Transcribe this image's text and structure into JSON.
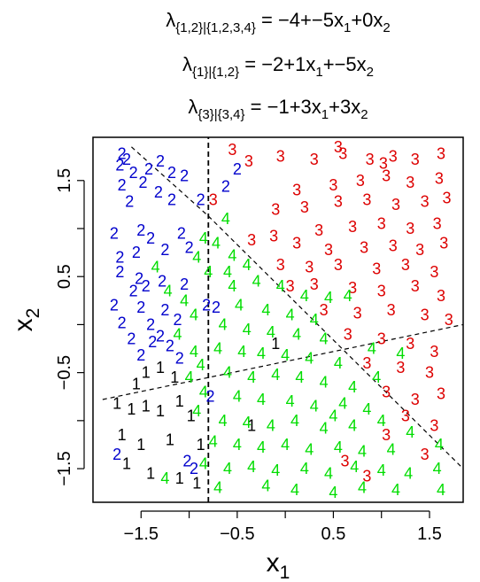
{
  "chart_data": {
    "type": "scatter",
    "title_lines": [
      {
        "lam": "λ",
        "sub": "{1,2}|{1,2,3,4}",
        "rest": " = −4+−5x",
        "s1": "1",
        "mid": "+0x",
        "s2": "2",
        "tail": ""
      },
      {
        "lam": "λ",
        "sub": "{1}|{1,2}",
        "rest": " = −2+1x",
        "s1": "1",
        "mid": "+−5x",
        "s2": "2",
        "tail": ""
      },
      {
        "lam": "λ",
        "sub": "{3}|{3,4}",
        "rest": " = −1+3x",
        "s1": "1",
        "mid": "+3x",
        "s2": "2",
        "tail": ""
      }
    ],
    "xlabel": {
      "base": "x",
      "sub": "1"
    },
    "ylabel": {
      "base": "x",
      "sub": "2"
    },
    "xlim": [
      -2.0,
      1.85
    ],
    "ylim": [
      -1.85,
      1.95
    ],
    "xticks": [
      -1.5,
      -1.0,
      -0.5,
      0.0,
      0.5,
      1.0,
      1.5
    ],
    "xtick_labels": [
      "−1.5",
      "",
      "−0.5",
      "",
      "0.5",
      "",
      "1.5"
    ],
    "yticks": [
      -1.5,
      -1.0,
      -0.5,
      0.0,
      0.5,
      1.0,
      1.5
    ],
    "ytick_labels": [
      "−1.5",
      "",
      "−0.5",
      "",
      "0.5",
      "",
      "1.5"
    ],
    "series_colors": {
      "1": "#000000",
      "2": "#0000cc",
      "3": "#dd0000",
      "4": "#00dd00"
    },
    "boundaries": [
      {
        "style": "dashed",
        "points": [
          [
            -0.8,
            -1.85
          ],
          [
            -0.8,
            1.95
          ]
        ]
      },
      {
        "style": "dashed",
        "points": [
          [
            -1.9,
            -0.78
          ],
          [
            1.85,
            0.0
          ]
        ]
      },
      {
        "style": "dashed",
        "points": [
          [
            -1.6,
            1.85
          ],
          [
            -0.8,
            1.13
          ]
        ]
      },
      {
        "style": "dashed",
        "points": [
          [
            -0.8,
            1.13
          ],
          [
            1.85,
            -1.5
          ]
        ]
      }
    ],
    "points": [
      {
        "x": -1.7,
        "y": 1.78,
        "c": "2"
      },
      {
        "x": -1.65,
        "y": 1.72,
        "c": "2"
      },
      {
        "x": -1.72,
        "y": 1.66,
        "c": "2"
      },
      {
        "x": -1.42,
        "y": 1.62,
        "c": "2"
      },
      {
        "x": -1.58,
        "y": 1.58,
        "c": "2"
      },
      {
        "x": -1.3,
        "y": 1.7,
        "c": "2"
      },
      {
        "x": -1.18,
        "y": 1.58,
        "c": "2"
      },
      {
        "x": -1.7,
        "y": 1.45,
        "c": "2"
      },
      {
        "x": -1.48,
        "y": 1.48,
        "c": "2"
      },
      {
        "x": -1.32,
        "y": 1.38,
        "c": "2"
      },
      {
        "x": -1.05,
        "y": 1.55,
        "c": "2"
      },
      {
        "x": -1.62,
        "y": 1.28,
        "c": "2"
      },
      {
        "x": -1.18,
        "y": 1.3,
        "c": "2"
      },
      {
        "x": -0.88,
        "y": 1.3,
        "c": "2"
      },
      {
        "x": -0.62,
        "y": 1.44,
        "c": "2"
      },
      {
        "x": -0.5,
        "y": 1.62,
        "c": "2"
      },
      {
        "x": -1.78,
        "y": 0.95,
        "c": "2"
      },
      {
        "x": -1.5,
        "y": 0.98,
        "c": "2"
      },
      {
        "x": -1.4,
        "y": 0.9,
        "c": "2"
      },
      {
        "x": -1.08,
        "y": 0.95,
        "c": "2"
      },
      {
        "x": -1.72,
        "y": 0.7,
        "c": "2"
      },
      {
        "x": -1.55,
        "y": 0.75,
        "c": "2"
      },
      {
        "x": -1.25,
        "y": 0.78,
        "c": "2"
      },
      {
        "x": -1.0,
        "y": 0.8,
        "c": "2"
      },
      {
        "x": -1.72,
        "y": 0.55,
        "c": "2"
      },
      {
        "x": -1.52,
        "y": 0.48,
        "c": "2"
      },
      {
        "x": -1.45,
        "y": 0.4,
        "c": "2"
      },
      {
        "x": -1.58,
        "y": 0.35,
        "c": "2"
      },
      {
        "x": -1.28,
        "y": 0.45,
        "c": "2"
      },
      {
        "x": -1.05,
        "y": 0.42,
        "c": "2"
      },
      {
        "x": -1.78,
        "y": 0.2,
        "c": "2"
      },
      {
        "x": -1.5,
        "y": 0.18,
        "c": "2"
      },
      {
        "x": -1.25,
        "y": 0.15,
        "c": "2"
      },
      {
        "x": -1.7,
        "y": 0.02,
        "c": "2"
      },
      {
        "x": -1.4,
        "y": 0.0,
        "c": "2"
      },
      {
        "x": -1.12,
        "y": 0.05,
        "c": "2"
      },
      {
        "x": -1.6,
        "y": -0.15,
        "c": "2"
      },
      {
        "x": -1.38,
        "y": -0.18,
        "c": "2"
      },
      {
        "x": -1.3,
        "y": -0.12,
        "c": "2"
      },
      {
        "x": -1.2,
        "y": -0.22,
        "c": "2"
      },
      {
        "x": -1.5,
        "y": -0.32,
        "c": "2"
      },
      {
        "x": -0.82,
        "y": 0.2,
        "c": "2"
      },
      {
        "x": -0.72,
        "y": 0.18,
        "c": "2"
      },
      {
        "x": -0.78,
        "y": -0.75,
        "c": "2"
      },
      {
        "x": -1.75,
        "y": -1.35,
        "c": "2"
      },
      {
        "x": -1.02,
        "y": -1.42,
        "c": "2"
      },
      {
        "x": -0.95,
        "y": -1.5,
        "c": "2"
      },
      {
        "x": -1.1,
        "y": -0.35,
        "c": "2"
      },
      {
        "x": -1.45,
        "y": -0.5,
        "c": "1"
      },
      {
        "x": -1.3,
        "y": -0.45,
        "c": "1"
      },
      {
        "x": -1.55,
        "y": -0.62,
        "c": "1"
      },
      {
        "x": -1.15,
        "y": -0.55,
        "c": "1"
      },
      {
        "x": -1.75,
        "y": -0.82,
        "c": "1"
      },
      {
        "x": -1.6,
        "y": -0.88,
        "c": "1"
      },
      {
        "x": -1.45,
        "y": -0.85,
        "c": "1"
      },
      {
        "x": -1.3,
        "y": -0.9,
        "c": "1"
      },
      {
        "x": -1.1,
        "y": -0.8,
        "c": "1"
      },
      {
        "x": -0.98,
        "y": -0.95,
        "c": "1"
      },
      {
        "x": -1.7,
        "y": -1.15,
        "c": "1"
      },
      {
        "x": -1.5,
        "y": -1.25,
        "c": "1"
      },
      {
        "x": -1.2,
        "y": -1.2,
        "c": "1"
      },
      {
        "x": -1.65,
        "y": -1.45,
        "c": "1"
      },
      {
        "x": -1.4,
        "y": -1.55,
        "c": "1"
      },
      {
        "x": -1.1,
        "y": -1.6,
        "c": "1"
      },
      {
        "x": -0.92,
        "y": -1.65,
        "c": "1"
      },
      {
        "x": -0.88,
        "y": -1.25,
        "c": "1"
      },
      {
        "x": -0.35,
        "y": -1.05,
        "c": "1"
      },
      {
        "x": -0.1,
        "y": -0.2,
        "c": "1"
      },
      {
        "x": -0.75,
        "y": 1.3,
        "c": "3"
      },
      {
        "x": -0.55,
        "y": 1.82,
        "c": "3"
      },
      {
        "x": -0.38,
        "y": 1.7,
        "c": "3"
      },
      {
        "x": -0.05,
        "y": 1.75,
        "c": "3"
      },
      {
        "x": 0.3,
        "y": 1.72,
        "c": "3"
      },
      {
        "x": 0.55,
        "y": 1.85,
        "c": "3"
      },
      {
        "x": 0.6,
        "y": 1.78,
        "c": "3"
      },
      {
        "x": 0.88,
        "y": 1.72,
        "c": "3"
      },
      {
        "x": 1.02,
        "y": 1.68,
        "c": "3"
      },
      {
        "x": 1.12,
        "y": 1.75,
        "c": "3"
      },
      {
        "x": 1.35,
        "y": 1.72,
        "c": "3"
      },
      {
        "x": 1.62,
        "y": 1.78,
        "c": "3"
      },
      {
        "x": 0.12,
        "y": 1.4,
        "c": "3"
      },
      {
        "x": 0.5,
        "y": 1.45,
        "c": "3"
      },
      {
        "x": 0.78,
        "y": 1.5,
        "c": "3"
      },
      {
        "x": 1.05,
        "y": 1.55,
        "c": "3"
      },
      {
        "x": 1.3,
        "y": 1.48,
        "c": "3"
      },
      {
        "x": 1.6,
        "y": 1.52,
        "c": "3"
      },
      {
        "x": -0.1,
        "y": 1.2,
        "c": "3"
      },
      {
        "x": 0.2,
        "y": 1.22,
        "c": "3"
      },
      {
        "x": 0.55,
        "y": 1.28,
        "c": "3"
      },
      {
        "x": 0.85,
        "y": 1.3,
        "c": "3"
      },
      {
        "x": 1.15,
        "y": 1.25,
        "c": "3"
      },
      {
        "x": 1.45,
        "y": 1.28,
        "c": "3"
      },
      {
        "x": 1.68,
        "y": 1.32,
        "c": "3"
      },
      {
        "x": 0.35,
        "y": 0.98,
        "c": "3"
      },
      {
        "x": 0.7,
        "y": 1.02,
        "c": "3"
      },
      {
        "x": 1.0,
        "y": 1.05,
        "c": "3"
      },
      {
        "x": 1.3,
        "y": 1.0,
        "c": "3"
      },
      {
        "x": 1.58,
        "y": 1.05,
        "c": "3"
      },
      {
        "x": -0.35,
        "y": 0.88,
        "c": "3"
      },
      {
        "x": -0.12,
        "y": 0.92,
        "c": "3"
      },
      {
        "x": 0.12,
        "y": 0.85,
        "c": "3"
      },
      {
        "x": 0.45,
        "y": 0.78,
        "c": "3"
      },
      {
        "x": 0.82,
        "y": 0.8,
        "c": "3"
      },
      {
        "x": 1.12,
        "y": 0.82,
        "c": "3"
      },
      {
        "x": 1.4,
        "y": 0.78,
        "c": "3"
      },
      {
        "x": 1.65,
        "y": 0.85,
        "c": "3"
      },
      {
        "x": -0.05,
        "y": 0.62,
        "c": "3"
      },
      {
        "x": 0.25,
        "y": 0.6,
        "c": "3"
      },
      {
        "x": 0.55,
        "y": 0.62,
        "c": "3"
      },
      {
        "x": 0.95,
        "y": 0.58,
        "c": "3"
      },
      {
        "x": 1.25,
        "y": 0.62,
        "c": "3"
      },
      {
        "x": 1.55,
        "y": 0.55,
        "c": "3"
      },
      {
        "x": 0.05,
        "y": 0.4,
        "c": "3"
      },
      {
        "x": 0.3,
        "y": 0.42,
        "c": "3"
      },
      {
        "x": 0.7,
        "y": 0.38,
        "c": "3"
      },
      {
        "x": 1.0,
        "y": 0.35,
        "c": "3"
      },
      {
        "x": 1.35,
        "y": 0.4,
        "c": "3"
      },
      {
        "x": 1.62,
        "y": 0.3,
        "c": "3"
      },
      {
        "x": 0.4,
        "y": 0.15,
        "c": "3"
      },
      {
        "x": 0.75,
        "y": 0.12,
        "c": "3"
      },
      {
        "x": 1.1,
        "y": 0.15,
        "c": "3"
      },
      {
        "x": 1.45,
        "y": 0.1,
        "c": "3"
      },
      {
        "x": 1.7,
        "y": 0.05,
        "c": "3"
      },
      {
        "x": 0.65,
        "y": -0.1,
        "c": "3"
      },
      {
        "x": 1.0,
        "y": -0.15,
        "c": "3"
      },
      {
        "x": 1.3,
        "y": -0.2,
        "c": "3"
      },
      {
        "x": 1.55,
        "y": -0.28,
        "c": "3"
      },
      {
        "x": 0.85,
        "y": -0.4,
        "c": "3"
      },
      {
        "x": 1.2,
        "y": -0.45,
        "c": "3"
      },
      {
        "x": 1.5,
        "y": -0.5,
        "c": "3"
      },
      {
        "x": 1.05,
        "y": -0.7,
        "c": "3"
      },
      {
        "x": 1.35,
        "y": -0.78,
        "c": "3"
      },
      {
        "x": 1.62,
        "y": -0.72,
        "c": "3"
      },
      {
        "x": 1.25,
        "y": -0.95,
        "c": "3"
      },
      {
        "x": 1.55,
        "y": -1.05,
        "c": "3"
      },
      {
        "x": 1.05,
        "y": -1.15,
        "c": "3"
      },
      {
        "x": 1.45,
        "y": -1.35,
        "c": "3"
      },
      {
        "x": 0.62,
        "y": -1.42,
        "c": "3"
      },
      {
        "x": 0.85,
        "y": -1.58,
        "c": "3"
      },
      {
        "x": -0.62,
        "y": 1.1,
        "c": "4"
      },
      {
        "x": -0.85,
        "y": 0.9,
        "c": "4"
      },
      {
        "x": -0.72,
        "y": 0.85,
        "c": "4"
      },
      {
        "x": -0.92,
        "y": 0.7,
        "c": "4"
      },
      {
        "x": -0.55,
        "y": 0.72,
        "c": "4"
      },
      {
        "x": -0.8,
        "y": 0.55,
        "c": "4"
      },
      {
        "x": -0.6,
        "y": 0.55,
        "c": "4"
      },
      {
        "x": -0.4,
        "y": 0.62,
        "c": "4"
      },
      {
        "x": -1.35,
        "y": 0.6,
        "c": "4"
      },
      {
        "x": -1.22,
        "y": 0.35,
        "c": "4"
      },
      {
        "x": -1.05,
        "y": 0.25,
        "c": "4"
      },
      {
        "x": -0.95,
        "y": 0.1,
        "c": "4"
      },
      {
        "x": -1.12,
        "y": -0.1,
        "c": "4"
      },
      {
        "x": -0.95,
        "y": -0.28,
        "c": "4"
      },
      {
        "x": -0.88,
        "y": -0.42,
        "c": "4"
      },
      {
        "x": -1.0,
        "y": -0.55,
        "c": "4"
      },
      {
        "x": -0.85,
        "y": -0.7,
        "c": "4"
      },
      {
        "x": -0.92,
        "y": -0.9,
        "c": "4"
      },
      {
        "x": -0.55,
        "y": 0.4,
        "c": "4"
      },
      {
        "x": -0.3,
        "y": 0.45,
        "c": "4"
      },
      {
        "x": -0.05,
        "y": 0.4,
        "c": "4"
      },
      {
        "x": 0.2,
        "y": 0.3,
        "c": "4"
      },
      {
        "x": 0.45,
        "y": 0.28,
        "c": "4"
      },
      {
        "x": 0.65,
        "y": 0.3,
        "c": "4"
      },
      {
        "x": -0.48,
        "y": 0.2,
        "c": "4"
      },
      {
        "x": -0.2,
        "y": 0.15,
        "c": "4"
      },
      {
        "x": 0.05,
        "y": 0.1,
        "c": "4"
      },
      {
        "x": 0.3,
        "y": 0.05,
        "c": "4"
      },
      {
        "x": -0.65,
        "y": 0.0,
        "c": "4"
      },
      {
        "x": -0.4,
        "y": -0.05,
        "c": "4"
      },
      {
        "x": -0.15,
        "y": -0.08,
        "c": "4"
      },
      {
        "x": 0.12,
        "y": -0.1,
        "c": "4"
      },
      {
        "x": 0.4,
        "y": -0.15,
        "c": "4"
      },
      {
        "x": -0.7,
        "y": -0.25,
        "c": "4"
      },
      {
        "x": -0.45,
        "y": -0.28,
        "c": "4"
      },
      {
        "x": -0.25,
        "y": -0.3,
        "c": "4"
      },
      {
        "x": 0.0,
        "y": -0.32,
        "c": "4"
      },
      {
        "x": 0.25,
        "y": -0.35,
        "c": "4"
      },
      {
        "x": 0.55,
        "y": -0.4,
        "c": "4"
      },
      {
        "x": -0.6,
        "y": -0.5,
        "c": "4"
      },
      {
        "x": -0.35,
        "y": -0.55,
        "c": "4"
      },
      {
        "x": -0.1,
        "y": -0.52,
        "c": "4"
      },
      {
        "x": 0.15,
        "y": -0.55,
        "c": "4"
      },
      {
        "x": 0.4,
        "y": -0.6,
        "c": "4"
      },
      {
        "x": 0.7,
        "y": -0.65,
        "c": "4"
      },
      {
        "x": 0.95,
        "y": -0.55,
        "c": "4"
      },
      {
        "x": -0.5,
        "y": -0.75,
        "c": "4"
      },
      {
        "x": -0.25,
        "y": -0.78,
        "c": "4"
      },
      {
        "x": 0.05,
        "y": -0.8,
        "c": "4"
      },
      {
        "x": 0.3,
        "y": -0.85,
        "c": "4"
      },
      {
        "x": 0.6,
        "y": -0.82,
        "c": "4"
      },
      {
        "x": 0.85,
        "y": -0.88,
        "c": "4"
      },
      {
        "x": -0.65,
        "y": -1.0,
        "c": "4"
      },
      {
        "x": -0.4,
        "y": -1.02,
        "c": "4"
      },
      {
        "x": -0.15,
        "y": -1.05,
        "c": "4"
      },
      {
        "x": 0.1,
        "y": -1.0,
        "c": "4"
      },
      {
        "x": 0.4,
        "y": -1.08,
        "c": "4"
      },
      {
        "x": 0.7,
        "y": -1.05,
        "c": "4"
      },
      {
        "x": 1.0,
        "y": -1.0,
        "c": "4"
      },
      {
        "x": 1.3,
        "y": -1.12,
        "c": "4"
      },
      {
        "x": -0.75,
        "y": -1.22,
        "c": "4"
      },
      {
        "x": -0.5,
        "y": -1.25,
        "c": "4"
      },
      {
        "x": -0.25,
        "y": -1.28,
        "c": "4"
      },
      {
        "x": 0.0,
        "y": -1.25,
        "c": "4"
      },
      {
        "x": 0.25,
        "y": -1.3,
        "c": "4"
      },
      {
        "x": 0.55,
        "y": -1.28,
        "c": "4"
      },
      {
        "x": 0.8,
        "y": -1.32,
        "c": "4"
      },
      {
        "x": 1.1,
        "y": -1.3,
        "c": "4"
      },
      {
        "x": 1.6,
        "y": -1.25,
        "c": "4"
      },
      {
        "x": -0.85,
        "y": -1.45,
        "c": "4"
      },
      {
        "x": -0.6,
        "y": -1.5,
        "c": "4"
      },
      {
        "x": -0.35,
        "y": -1.48,
        "c": "4"
      },
      {
        "x": -0.1,
        "y": -1.52,
        "c": "4"
      },
      {
        "x": 0.2,
        "y": -1.5,
        "c": "4"
      },
      {
        "x": 0.45,
        "y": -1.55,
        "c": "4"
      },
      {
        "x": 0.72,
        "y": -1.48,
        "c": "4"
      },
      {
        "x": 1.0,
        "y": -1.52,
        "c": "4"
      },
      {
        "x": 1.28,
        "y": -1.55,
        "c": "4"
      },
      {
        "x": 1.58,
        "y": -1.5,
        "c": "4"
      },
      {
        "x": -1.25,
        "y": -1.6,
        "c": "4"
      },
      {
        "x": -0.7,
        "y": -1.7,
        "c": "4"
      },
      {
        "x": -0.2,
        "y": -1.68,
        "c": "4"
      },
      {
        "x": 0.1,
        "y": -1.72,
        "c": "4"
      },
      {
        "x": 0.5,
        "y": -1.75,
        "c": "4"
      },
      {
        "x": 0.8,
        "y": -1.7,
        "c": "4"
      },
      {
        "x": 1.15,
        "y": -1.72,
        "c": "4"
      },
      {
        "x": 1.62,
        "y": -1.72,
        "c": "4"
      },
      {
        "x": 0.9,
        "y": -0.25,
        "c": "4"
      },
      {
        "x": 1.2,
        "y": -0.3,
        "c": "4"
      },
      {
        "x": 0.5,
        "y": -0.95,
        "c": "4"
      }
    ]
  }
}
